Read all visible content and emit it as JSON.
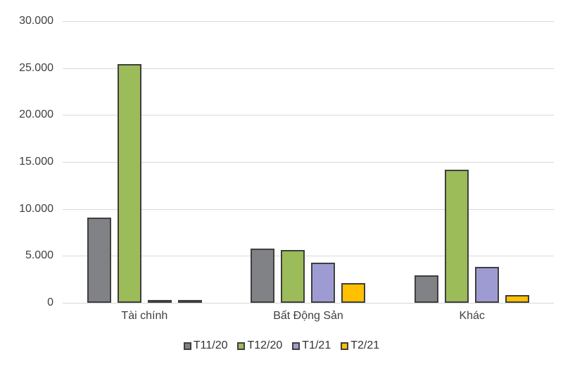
{
  "chart_data": {
    "type": "bar",
    "title": "",
    "categories": [
      "Tài chính",
      "Bất Động Sản",
      "Khác"
    ],
    "series": [
      {
        "name": "T11/20",
        "color": "#808285",
        "values": [
          9100,
          5800,
          2900
        ]
      },
      {
        "name": "T12/20",
        "color": "#9cbb59",
        "values": [
          25400,
          5600,
          14200
        ]
      },
      {
        "name": "T1/21",
        "color": "#9e9bd3",
        "values": [
          300,
          4300,
          3800
        ]
      },
      {
        "name": "T2/21",
        "color": "#ffc000",
        "values": [
          150,
          2100,
          800
        ]
      }
    ],
    "ylim": [
      0,
      30000
    ],
    "ytick_step": 5000,
    "ytick_labels": [
      "0",
      "5.000",
      "10.000",
      "15.000",
      "20.000",
      "25.000",
      "30.000"
    ],
    "grid": "horizontal-only",
    "legend_position": "bottom",
    "colors": {
      "bar_border": "#3f3f3f",
      "gridline": "#d9d9d9",
      "text": "#404040",
      "background": "#ffffff"
    }
  }
}
